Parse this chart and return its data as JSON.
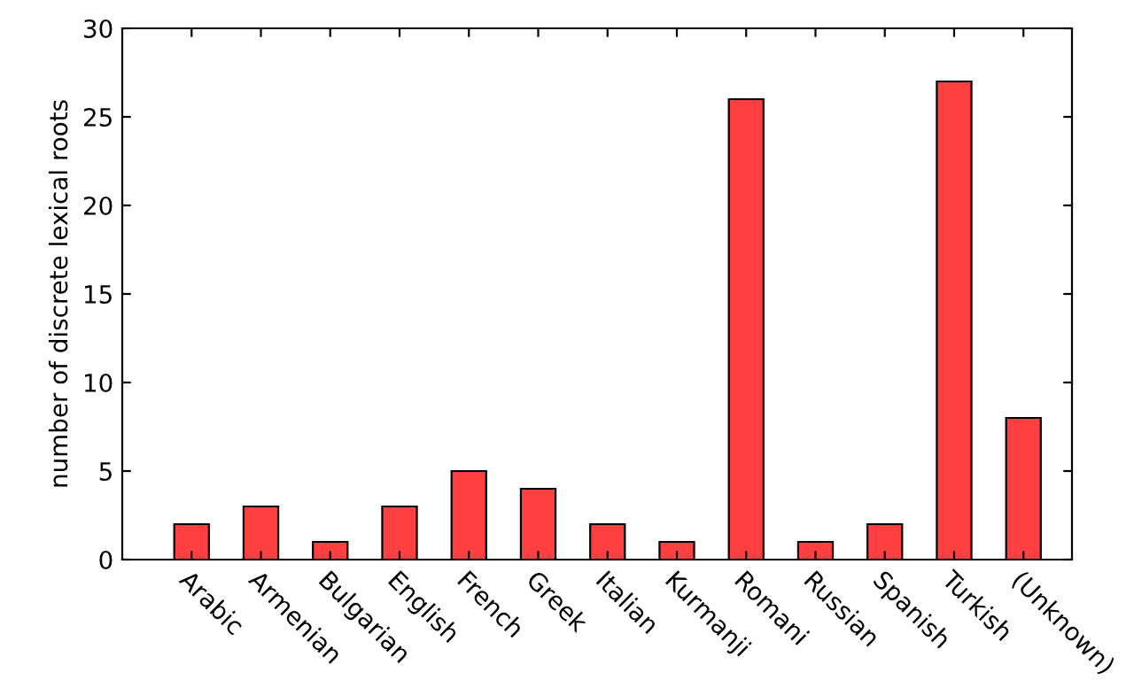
{
  "chart_data": {
    "type": "bar",
    "ylabel": "number of discrete lexical roots",
    "categories": [
      "Arabic",
      "Armenian",
      "Bulgarian",
      "English",
      "French",
      "Greek",
      "Italian",
      "Kurmanji",
      "Romani",
      "Russian",
      "Spanish",
      "Turkish",
      "(Unknown)"
    ],
    "values": [
      2,
      3,
      1,
      3,
      5,
      4,
      2,
      1,
      26,
      1,
      2,
      27,
      8
    ],
    "color": "#ff4040",
    "ylim": [
      0,
      30
    ],
    "yticks": [
      0,
      5,
      10,
      15,
      20,
      25,
      30
    ],
    "grid": false,
    "legend": false
  }
}
